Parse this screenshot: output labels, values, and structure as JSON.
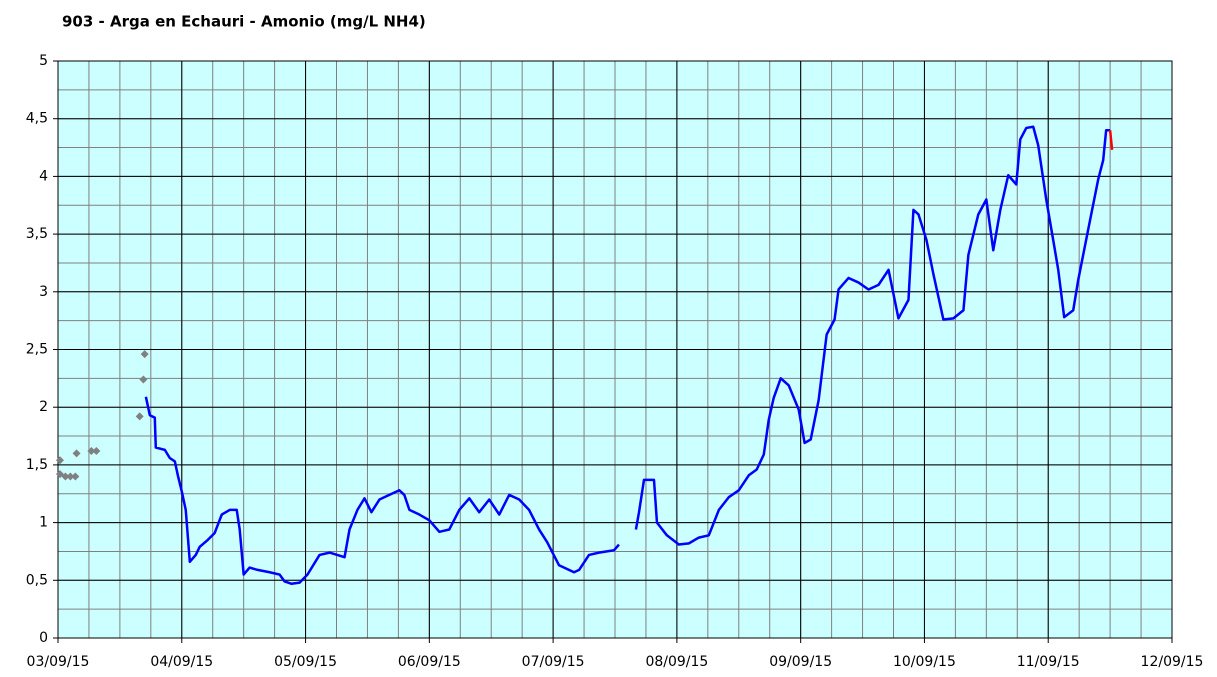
{
  "chart_data": {
    "type": "line",
    "title": "903 - Arga en Echauri - Amonio (mg/L NH4)",
    "xlim": [
      3,
      12
    ],
    "xticks": [
      {
        "value": 3,
        "label": "03/09/15"
      },
      {
        "value": 4,
        "label": "04/09/15"
      },
      {
        "value": 5,
        "label": "05/09/15"
      },
      {
        "value": 6,
        "label": "06/09/15"
      },
      {
        "value": 7,
        "label": "07/09/15"
      },
      {
        "value": 8,
        "label": "08/09/15"
      },
      {
        "value": 9,
        "label": "09/09/15"
      },
      {
        "value": 10,
        "label": "10/09/15"
      },
      {
        "value": 11,
        "label": "11/09/15"
      },
      {
        "value": 12,
        "label": "12/09/15"
      }
    ],
    "x_minor_step": 0.25,
    "ylim": [
      0,
      5
    ],
    "yticks": [
      0,
      {
        "value": 0.5,
        "label": "0,5"
      },
      1,
      {
        "value": 1.5,
        "label": "1,5"
      },
      2,
      {
        "value": 2.5,
        "label": "2,5"
      },
      3,
      {
        "value": 3.5,
        "label": "3,5"
      },
      4,
      {
        "value": 4.5,
        "label": "4,5"
      },
      5
    ],
    "y_minor_step": 0.25,
    "grid": true,
    "background": "#ccffff",
    "series": [
      {
        "color": "#808080",
        "marker": "diamond",
        "line": false,
        "x": [
          3.016,
          3.016,
          3.06,
          3.1,
          3.14,
          3.15,
          3.27,
          3.31,
          3.66,
          3.69,
          3.7
        ],
        "values": [
          1.54,
          1.42,
          1.4,
          1.4,
          1.4,
          1.6,
          1.62,
          1.62,
          1.92,
          2.24,
          2.46
        ]
      },
      {
        "color": "#0000ff",
        "line": true,
        "x": [
          3.71,
          3.742,
          3.782,
          3.79,
          3.863,
          3.903,
          3.944,
          3.968,
          4.0,
          4.032,
          4.065,
          4.113,
          4.145,
          4.21,
          4.266,
          4.323,
          4.387,
          4.444,
          4.468,
          4.5,
          4.548,
          4.613,
          4.71,
          4.79,
          4.831,
          4.887,
          4.952,
          5.016,
          5.113,
          5.194,
          5.315,
          5.355,
          5.419,
          5.476,
          5.532,
          5.597,
          5.677,
          5.758,
          5.798,
          5.839,
          5.919,
          6.0,
          6.081,
          6.161,
          6.242,
          6.323,
          6.403,
          6.484,
          6.565,
          6.645,
          6.726,
          6.806,
          6.887,
          6.952,
          7.048,
          7.169,
          7.21,
          7.29,
          7.371,
          7.492,
          7.532,
          7.6,
          7.669,
          7.694,
          7.734,
          7.815,
          7.839,
          7.919,
          8.016,
          8.097,
          8.177,
          8.258,
          8.339,
          8.419,
          8.5,
          8.581,
          8.645,
          8.702,
          8.742,
          8.782,
          8.839,
          8.903,
          8.984,
          9.032,
          9.081,
          9.145,
          9.21,
          9.274,
          9.306,
          9.387,
          9.468,
          9.548,
          9.629,
          9.71,
          9.79,
          9.871,
          9.911,
          9.952,
          10.016,
          10.073,
          10.153,
          10.234,
          10.315,
          10.355,
          10.435,
          10.5,
          10.556,
          10.613,
          10.677,
          10.742,
          10.774,
          10.823,
          10.879,
          10.919,
          10.984,
          11.04,
          11.081,
          11.129,
          11.202,
          11.242,
          11.323,
          11.403,
          11.444,
          11.468,
          11.5
        ],
        "values": [
          2.09,
          1.93,
          1.91,
          1.65,
          1.63,
          1.56,
          1.53,
          1.41,
          1.27,
          1.11,
          0.66,
          0.72,
          0.79,
          0.85,
          0.91,
          1.07,
          1.11,
          1.11,
          0.94,
          0.55,
          0.61,
          0.59,
          0.57,
          0.55,
          0.49,
          0.47,
          0.48,
          0.55,
          0.72,
          0.74,
          0.7,
          0.94,
          1.11,
          1.21,
          1.09,
          1.2,
          1.24,
          1.28,
          1.24,
          1.11,
          1.07,
          1.02,
          0.92,
          0.94,
          1.11,
          1.21,
          1.09,
          1.2,
          1.07,
          1.24,
          1.2,
          1.11,
          0.94,
          0.83,
          0.63,
          0.57,
          0.59,
          0.72,
          0.74,
          0.76,
          0.81,
          null,
          0.94,
          1.09,
          1.37,
          1.37,
          1.0,
          0.89,
          0.81,
          0.82,
          0.87,
          0.89,
          1.11,
          1.22,
          1.28,
          1.41,
          1.46,
          1.59,
          1.89,
          2.08,
          2.25,
          2.19,
          1.98,
          1.69,
          1.72,
          2.06,
          2.63,
          2.76,
          3.02,
          3.12,
          3.08,
          3.02,
          3.06,
          3.19,
          2.77,
          2.93,
          3.71,
          3.67,
          3.45,
          3.15,
          2.76,
          2.77,
          2.84,
          3.32,
          3.67,
          3.8,
          3.36,
          3.71,
          4.01,
          3.93,
          4.32,
          4.42,
          4.43,
          4.27,
          3.8,
          3.45,
          3.19,
          2.78,
          2.84,
          3.1,
          3.54,
          3.97,
          4.14,
          4.4,
          4.4
        ]
      },
      {
        "color": "#ff0000",
        "line": true,
        "x": [
          11.5,
          11.516
        ],
        "values": [
          4.4,
          4.23
        ]
      }
    ]
  }
}
